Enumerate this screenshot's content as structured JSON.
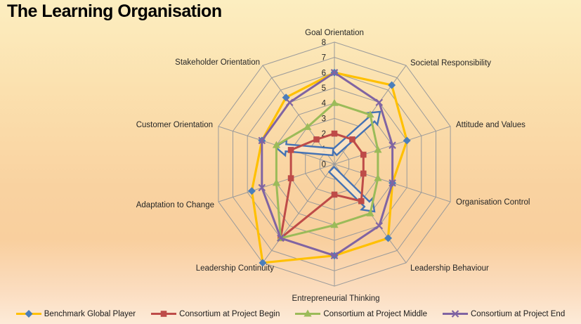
{
  "title": "The Learning Organisation",
  "chart_data": {
    "type": "radar",
    "title": "The Learning Organisation",
    "categories": [
      "Goal Orientation",
      "Societal Responsibility",
      "Attitude and Values",
      "Organisation Control",
      "Leadership Behaviour",
      "Entrepreneurial Thinking",
      "Leadership Continuity",
      "Adaptation to Change",
      "Customer Orientation",
      "Stakeholder Orientation"
    ],
    "axis": {
      "min": 0,
      "max": 8,
      "ticks": [
        "0",
        "1",
        "2",
        "3",
        "4",
        "5",
        "6",
        "7",
        "8"
      ],
      "grid": "on"
    },
    "series": [
      {
        "name": "Benchmark Global Player",
        "line_color": "#FFC000",
        "marker": "diamond",
        "marker_color": "#4A7EBB",
        "values": [
          6,
          6.4,
          5,
          4,
          6,
          6,
          8,
          5.7,
          5,
          5.4
        ]
      },
      {
        "name": "Consortium at Project Begin",
        "line_color": "#BE4B48",
        "marker": "square",
        "marker_color": "#BE4B48",
        "values": [
          2,
          2,
          2,
          2,
          3,
          2,
          6,
          3,
          3,
          2
        ]
      },
      {
        "name": "Consortium at Project Middle",
        "line_color": "#9BBB59",
        "marker": "triangle",
        "marker_color": "#9BBB59",
        "values": [
          4,
          4,
          3,
          3,
          4,
          4,
          6,
          4,
          4,
          3
        ]
      },
      {
        "name": "Consortium at Project End",
        "line_color": "#8064A2",
        "marker": "x",
        "marker_color": "#8064A2",
        "values": [
          6,
          5,
          4,
          4,
          5,
          6,
          6,
          5,
          5,
          5
        ]
      }
    ],
    "legend_position": "bottom",
    "annotations": [
      {
        "kind": "block-arrow",
        "points_toward": "Societal Responsibility",
        "from": [
          476,
          217
        ],
        "to": [
          541,
          159
        ]
      },
      {
        "kind": "block-arrow",
        "points_toward": "Customer Orientation",
        "from": [
          474,
          216
        ],
        "to": [
          392,
          209
        ]
      },
      {
        "kind": "block-arrow",
        "points_toward": "Leadership Behaviour",
        "from": [
          472,
          241
        ],
        "to": [
          533,
          301
        ]
      }
    ]
  },
  "colors": {
    "grid": "#9B9B9B",
    "axis_text": "#262626",
    "annotation_stroke": "#4472B4",
    "annotation_fill": "#FAE4C6",
    "background_top": "#FCEEC0",
    "background_mid": "#F9D2A0",
    "background_bottom": "#FDEBD8"
  }
}
